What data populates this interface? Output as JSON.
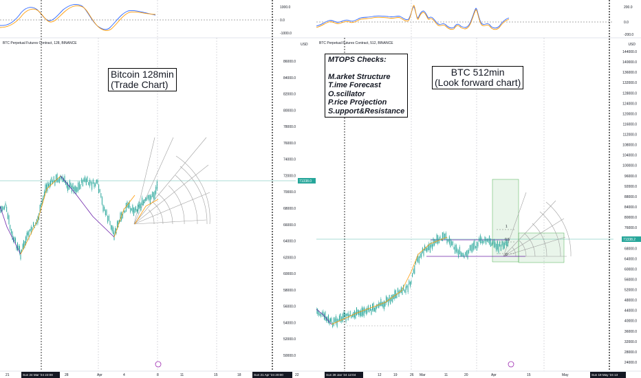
{
  "left": {
    "symbol": "BTC Perpetual Futures Contract, 128, BINANCE",
    "note": [
      "Bitcoin 128min",
      "(Trade Chart)"
    ],
    "osc_labels": [
      "1000.0",
      "0.0",
      "-1000.0"
    ],
    "price_labels": [
      "86000.0",
      "84000.0",
      "82000.0",
      "80000.0",
      "78000.0",
      "76000.0",
      "74000.0",
      "72000.0",
      "70000.0",
      "68000.0",
      "66000.0",
      "64000.0",
      "62000.0",
      "60000.0",
      "58000.0",
      "56000.0",
      "54000.0",
      "52000.0",
      "50000.0"
    ],
    "current_price": "71338.0",
    "unit": "USD",
    "x_labels": [
      "21",
      "28",
      "Apr",
      "4",
      "8",
      "11",
      "15",
      "18",
      "22"
    ],
    "date_badges": [
      "Sun 24 Mar '24  22:08",
      "Sun 21 Apr '24  20:00"
    ]
  },
  "right": {
    "symbol": "BTC Perpetual Futures Contract, 512, BINANCE",
    "note": [
      "BTC 512min",
      "(Look forward chart)"
    ],
    "mtops": [
      "MTOPS Checks:",
      "",
      "M.arket Structure",
      "T.ime Forecast",
      "O.scillator",
      "P.rice Projection",
      "S.upport&Resistance"
    ],
    "osc_labels": [
      "200.0",
      "0.0",
      "-200.0"
    ],
    "price_labels": [
      "144000.0",
      "140000.0",
      "136000.0",
      "132000.0",
      "128000.0",
      "124000.0",
      "120000.0",
      "116000.0",
      "112000.0",
      "108000.0",
      "104000.0",
      "100000.0",
      "96000.0",
      "92000.0",
      "88000.0",
      "84000.0",
      "80000.0",
      "76000.0",
      "72000.0",
      "68000.0",
      "64000.0",
      "60000.0",
      "56000.0",
      "52000.0",
      "48000.0",
      "44000.0",
      "40000.0",
      "36000.0",
      "32000.0",
      "28000.0",
      "24000.0"
    ],
    "current_price": "71338.2",
    "unit": "USD",
    "x_labels": [
      "5",
      "12",
      "19",
      "26",
      "Mar",
      "11",
      "20",
      "Apr",
      "15",
      "May"
    ],
    "date_badges": [
      "Sun 28 Jan '24  12:04",
      "Sun 19 May '24  13"
    ],
    "fib_labels": [
      "1",
      "0.5",
      "0"
    ]
  },
  "colors": {
    "candle": "#26a69a",
    "up_leg": "#ff9800",
    "down_leg": "#6a1fa8",
    "osc_blue": "#2962ff",
    "osc_orange": "#ff9800",
    "fan": "#9e9e9e",
    "current_line": "#26a69a"
  }
}
